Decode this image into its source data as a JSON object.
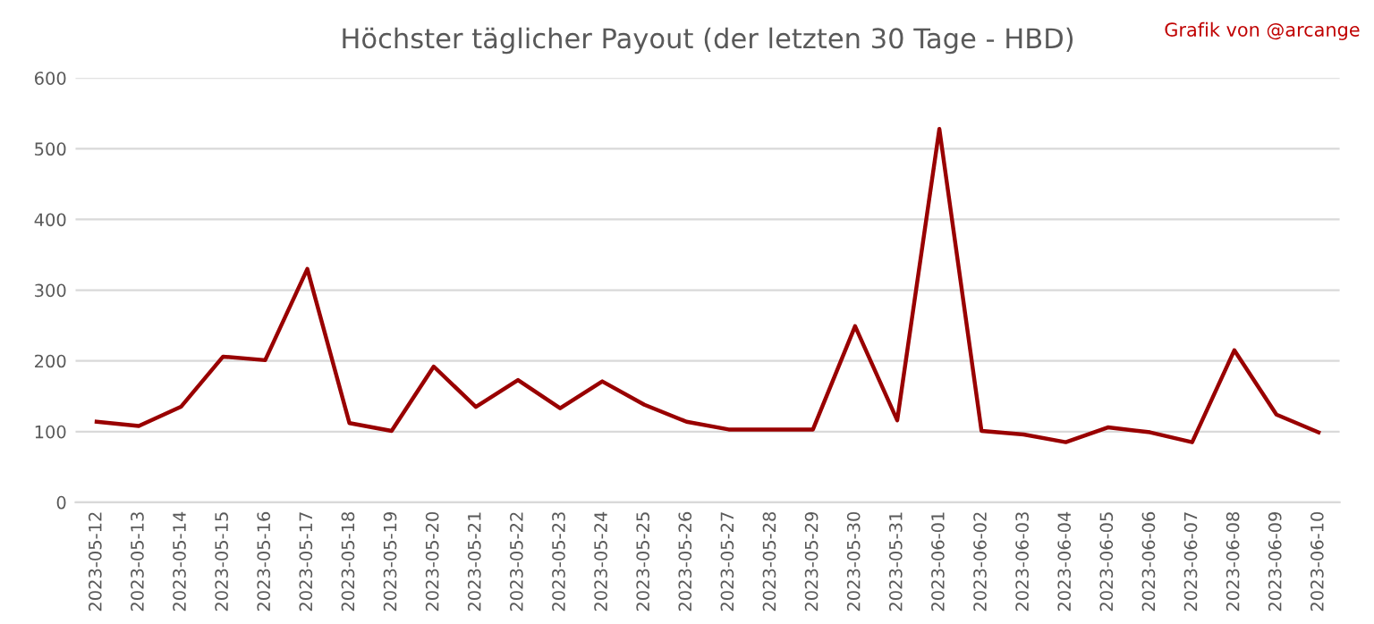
{
  "chart_data": {
    "type": "line",
    "title": "Höchster täglicher Payout (der letzten 30 Tage - HBD)",
    "annotations": [
      "Grafik von @arcange"
    ],
    "categories": [
      "2023-05-12",
      "2023-05-13",
      "2023-05-14",
      "2023-05-15",
      "2023-05-16",
      "2023-05-17",
      "2023-05-18",
      "2023-05-19",
      "2023-05-20",
      "2023-05-21",
      "2023-05-22",
      "2023-05-23",
      "2023-05-24",
      "2023-05-25",
      "2023-05-26",
      "2023-05-27",
      "2023-05-28",
      "2023-05-29",
      "2023-05-30",
      "2023-05-31",
      "2023-06-01",
      "2023-06-02",
      "2023-06-03",
      "2023-06-04",
      "2023-06-05",
      "2023-06-06",
      "2023-06-07",
      "2023-06-08",
      "2023-06-09",
      "2023-06-10"
    ],
    "series": [
      {
        "color": "#990000",
        "values": [
          114,
          108,
          135,
          206,
          201,
          330,
          112,
          101,
          192,
          135,
          173,
          133,
          171,
          138,
          114,
          103,
          103,
          103,
          249,
          116,
          528,
          101,
          96,
          85,
          106,
          99,
          85,
          215,
          124,
          99
        ]
      }
    ],
    "ylim": [
      0,
      600
    ],
    "yticks": [
      0,
      100,
      200,
      300,
      400,
      500,
      600
    ],
    "grid": "y",
    "legend": false
  }
}
